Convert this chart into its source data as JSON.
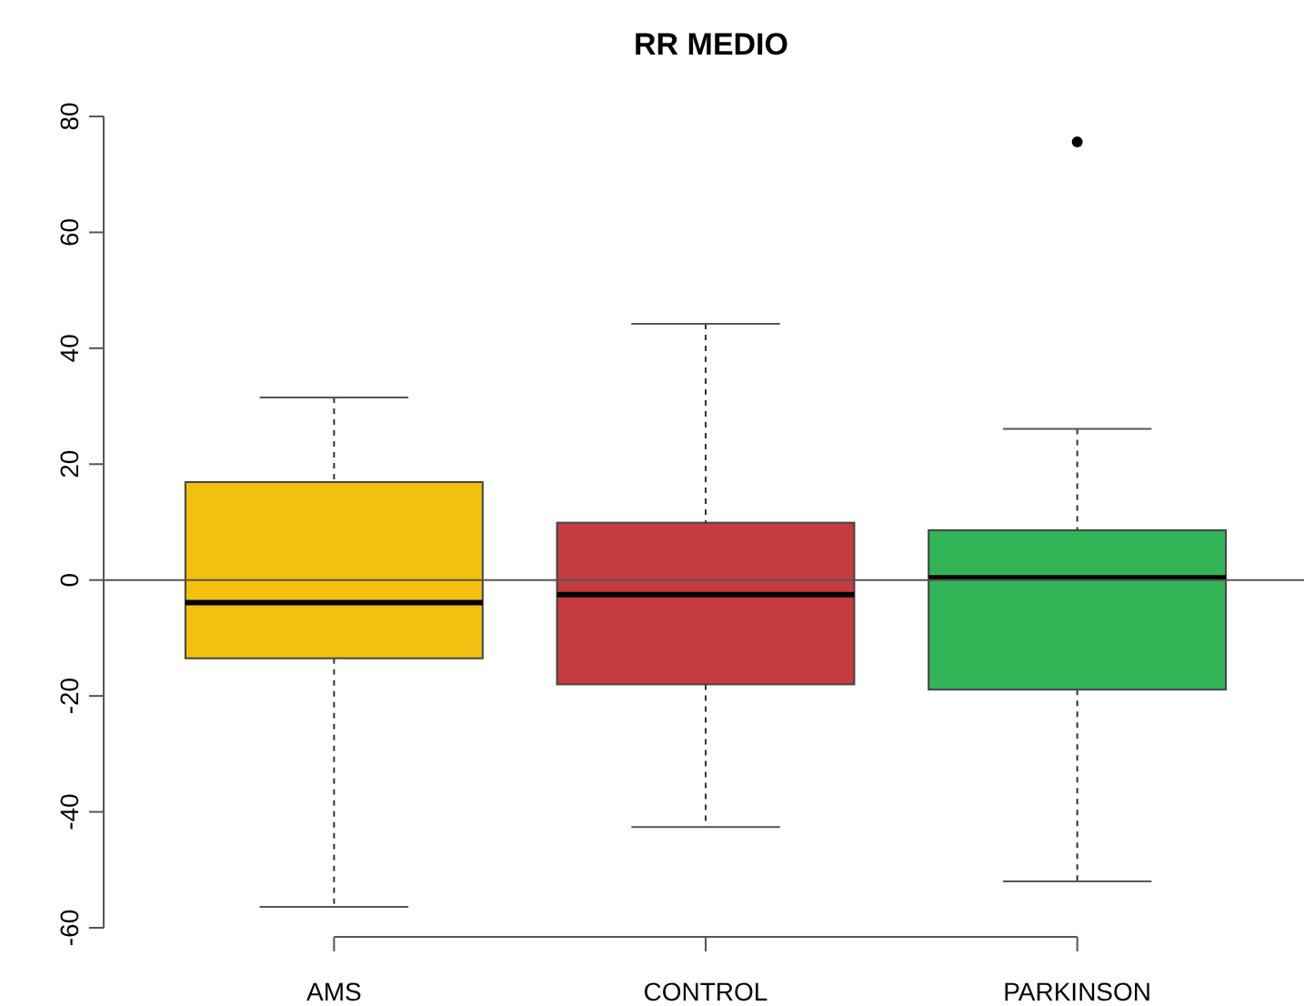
{
  "chart_data": {
    "type": "box",
    "title": "RR MEDIO",
    "categories": [
      "AMS",
      "CONTROL",
      "PARKINSON"
    ],
    "colors": [
      "#f2c10f",
      "#c43c3f",
      "#33b457"
    ],
    "boxes": [
      {
        "low": -56.4,
        "q1": -13.5,
        "median": -3.9,
        "q3": 16.9,
        "high": 31.5
      },
      {
        "low": -42.6,
        "q1": -18,
        "median": -2.5,
        "q3": 9.9,
        "high": 44.2
      },
      {
        "low": -52,
        "q1": -18.9,
        "median": 0.4,
        "q3": 8.6,
        "high": 26.1,
        "outliers": [
          75.6
        ]
      }
    ],
    "ylim": [
      -60,
      80
    ],
    "yticks": [
      -60,
      -40,
      -20,
      0,
      20,
      40,
      60,
      80
    ],
    "grid": false,
    "ref_lines": [
      {
        "axis": "y",
        "value": 0,
        "color": "#555555"
      }
    ]
  }
}
